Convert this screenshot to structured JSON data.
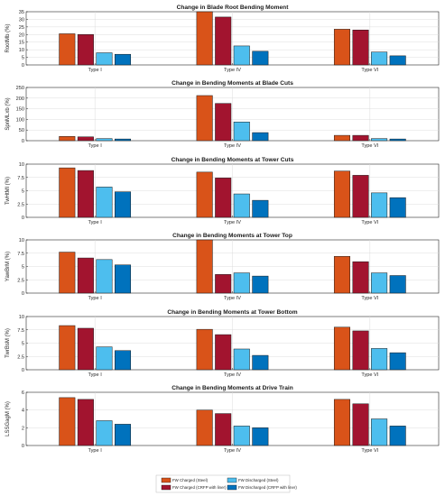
{
  "colors": {
    "fw_charged_steel": "#D95319",
    "fw_charged_cfrp": "#A2142F",
    "fw_discharged_steel": "#4DBEEE",
    "fw_discharged_cfrp": "#0072BD"
  },
  "legend": {
    "items": [
      {
        "label": "FW Charged (Steel)",
        "color_key": "fw_charged_steel"
      },
      {
        "label": "FW Discharged (Steel)",
        "color_key": "fw_discharged_steel"
      },
      {
        "label": "FW Charged (CRFP with liner)",
        "color_key": "fw_charged_cfrp"
      },
      {
        "label": "FW Discharged (CRFP with liner)",
        "color_key": "fw_discharged_cfrp"
      }
    ]
  },
  "chart_data": [
    {
      "type": "bar",
      "title": "Change in Blade Root Bending Moment",
      "ylabel": "RootMb (%)",
      "categories": [
        "Type I",
        "Type IV",
        "Type VI"
      ],
      "ylim": [
        0,
        35
      ],
      "yticks": [
        0,
        5,
        10,
        15,
        20,
        25,
        30,
        35
      ],
      "series": [
        {
          "name": "FW Charged (Steel)",
          "values": [
            20.5,
            35,
            23.5
          ]
        },
        {
          "name": "FW Charged (CRFP with liner)",
          "values": [
            20,
            31.5,
            23
          ]
        },
        {
          "name": "FW Discharged (Steel)",
          "values": [
            8,
            12.5,
            8.5
          ]
        },
        {
          "name": "FW Discharged (CRFP with liner)",
          "values": [
            7,
            9,
            6
          ]
        }
      ]
    },
    {
      "type": "bar",
      "title": "Change in Bending Moments at Blade Cuts",
      "ylabel": "SpnMLxb (%)",
      "categories": [
        "Type I",
        "Type IV",
        "Type VI"
      ],
      "ylim": [
        0,
        250
      ],
      "yticks": [
        0,
        50,
        100,
        150,
        200,
        250
      ],
      "series": [
        {
          "name": "FW Charged (Steel)",
          "values": [
            20,
            212,
            25
          ]
        },
        {
          "name": "FW Charged (CRFP with liner)",
          "values": [
            18,
            175,
            25
          ]
        },
        {
          "name": "FW Discharged (Steel)",
          "values": [
            10,
            88,
            10
          ]
        },
        {
          "name": "FW Discharged (CRFP with liner)",
          "values": [
            8,
            38,
            8
          ]
        }
      ]
    },
    {
      "type": "bar",
      "title": "Change in Bending Moments at Tower Cuts",
      "ylabel": "TwHtMl (%)",
      "categories": [
        "Type I",
        "Type IV",
        "Type VI"
      ],
      "ylim": [
        0,
        10
      ],
      "yticks": [
        0,
        2.5,
        5,
        7.5,
        10
      ],
      "series": [
        {
          "name": "FW Charged (Steel)",
          "values": [
            9.3,
            8.5,
            8.7
          ]
        },
        {
          "name": "FW Charged (CRFP with liner)",
          "values": [
            8.8,
            7.4,
            7.9
          ]
        },
        {
          "name": "FW Discharged (Steel)",
          "values": [
            5.7,
            4.4,
            4.6
          ]
        },
        {
          "name": "FW Discharged (CRFP with liner)",
          "values": [
            4.8,
            3.2,
            3.7
          ]
        }
      ]
    },
    {
      "type": "bar",
      "title": "Change in Bending Moments at Tower Top",
      "ylabel": "YawBrM (%)",
      "categories": [
        "Type I",
        "Type IV",
        "Type VI"
      ],
      "ylim": [
        0,
        10
      ],
      "yticks": [
        0,
        2.5,
        5,
        7.5,
        10
      ],
      "series": [
        {
          "name": "FW Charged (Steel)",
          "values": [
            7.7,
            10,
            6.9
          ]
        },
        {
          "name": "FW Charged (CRFP with liner)",
          "values": [
            6.6,
            3.5,
            5.9
          ]
        },
        {
          "name": "FW Discharged (Steel)",
          "values": [
            6.3,
            3.8,
            3.8
          ]
        },
        {
          "name": "FW Discharged (CRFP with liner)",
          "values": [
            5.3,
            3.2,
            3.3
          ]
        }
      ]
    },
    {
      "type": "bar",
      "title": "Change in Bending Moments at Tower Bottom",
      "ylabel": "TwrBsM (%)",
      "categories": [
        "Type I",
        "Type IV",
        "Type VI"
      ],
      "ylim": [
        0,
        10
      ],
      "yticks": [
        0,
        2.5,
        5,
        7.5,
        10
      ],
      "series": [
        {
          "name": "FW Charged (Steel)",
          "values": [
            8.3,
            7.6,
            8.0
          ]
        },
        {
          "name": "FW Charged (CRFP with liner)",
          "values": [
            7.8,
            6.6,
            7.3
          ]
        },
        {
          "name": "FW Discharged (Steel)",
          "values": [
            4.3,
            3.9,
            4.0
          ]
        },
        {
          "name": "FW Discharged (CRFP with liner)",
          "values": [
            3.6,
            2.7,
            3.2
          ]
        }
      ]
    },
    {
      "type": "bar",
      "title": "Change in Bending Moments at Drive Train",
      "ylabel": "LSSGagM (%)",
      "categories": [
        "Type I",
        "Type IV",
        "Type VI"
      ],
      "ylim": [
        0,
        6
      ],
      "yticks": [
        0,
        2,
        4,
        6
      ],
      "series": [
        {
          "name": "FW Charged (Steel)",
          "values": [
            5.4,
            4.0,
            5.2
          ]
        },
        {
          "name": "FW Charged (CRFP with liner)",
          "values": [
            5.2,
            3.6,
            4.7
          ]
        },
        {
          "name": "FW Discharged (Steel)",
          "values": [
            2.8,
            2.2,
            3.0
          ]
        },
        {
          "name": "FW Discharged (CRFP with liner)",
          "values": [
            2.4,
            2.0,
            2.2
          ]
        }
      ]
    }
  ]
}
